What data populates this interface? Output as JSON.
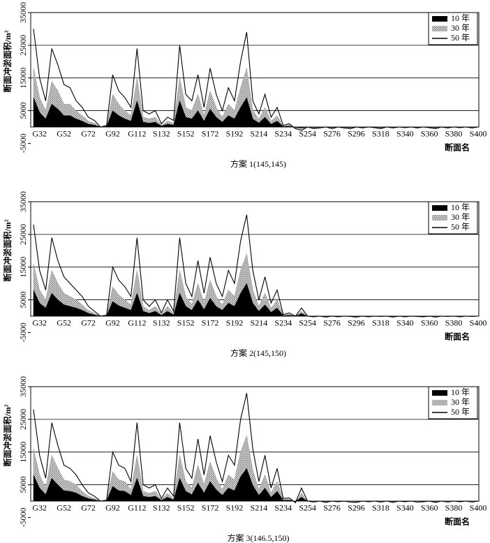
{
  "chart_data": [
    {
      "type": "line",
      "caption": "方案 1(145,145)",
      "xlabel": "断面名",
      "ylabel": "断面冲淤面积/m²",
      "legend": "upper right",
      "grid": true,
      "ylim": [
        -5000,
        35000
      ],
      "yticks": [
        -5000,
        5000,
        15000,
        25000,
        35000
      ],
      "categories": [
        null,
        "G32",
        null,
        null,
        null,
        "G52",
        null,
        null,
        null,
        "G72",
        null,
        null,
        null,
        "G92",
        null,
        null,
        null,
        "G112",
        null,
        null,
        null,
        "S132",
        null,
        null,
        null,
        "S152",
        null,
        null,
        null,
        "S172",
        null,
        null,
        null,
        "S192",
        null,
        null,
        null,
        "S214",
        null,
        null,
        null,
        "S234",
        null,
        null,
        null,
        "S254",
        null,
        null,
        null,
        "S276",
        null,
        null,
        null,
        "S296",
        null,
        null,
        null,
        "S318",
        null,
        null,
        null,
        "S340",
        null,
        null,
        null,
        "S360",
        null,
        null,
        null,
        "S380",
        null,
        null,
        null,
        "S400"
      ],
      "series": [
        {
          "name": "10 年",
          "kind": "area",
          "color": "#000000",
          "values": [
            9000,
            4500,
            2500,
            7000,
            5500,
            3500,
            3500,
            2500,
            1800,
            900,
            600,
            0,
            150,
            5000,
            3500,
            2500,
            1800,
            8000,
            1500,
            1200,
            1500,
            300,
            900,
            600,
            8000,
            3000,
            2500,
            5000,
            1800,
            5500,
            3000,
            1500,
            3500,
            2500,
            6000,
            9000,
            2500,
            1200,
            3000,
            900,
            1800,
            150,
            300,
            -150,
            -300,
            0,
            -150,
            -100,
            0,
            -150,
            0,
            -100,
            -150,
            0,
            -100,
            0,
            -50,
            -150,
            0,
            -100,
            0,
            -50,
            0,
            -100,
            0,
            -50,
            -150,
            0,
            -100,
            0,
            -50,
            0,
            -100,
            0
          ]
        },
        {
          "name": "30 年",
          "kind": "hatch",
          "color": "#888888",
          "values": [
            18000,
            9000,
            5000,
            14000,
            11000,
            7000,
            7000,
            5000,
            3500,
            1800,
            1200,
            0,
            300,
            10000,
            7000,
            5000,
            3500,
            15000,
            3000,
            2500,
            3000,
            600,
            1800,
            1200,
            15000,
            6000,
            5000,
            10000,
            3500,
            11000,
            6000,
            3000,
            7000,
            5000,
            12000,
            18000,
            5000,
            2500,
            6000,
            1800,
            3500,
            300,
            600,
            -300,
            -600,
            0,
            -300,
            -200,
            0,
            -300,
            0,
            -200,
            -300,
            0,
            -200,
            0,
            -100,
            -300,
            0,
            -200,
            0,
            -100,
            0,
            -200,
            0,
            -100,
            -300,
            0,
            -200,
            0,
            -100,
            0,
            -200,
            0
          ]
        },
        {
          "name": "50 年",
          "kind": "line",
          "color": "#000000",
          "values": [
            30000,
            15000,
            8000,
            24000,
            19000,
            13000,
            12000,
            8000,
            6000,
            3000,
            2000,
            0,
            500,
            16000,
            11000,
            9000,
            6000,
            24000,
            5000,
            4000,
            5000,
            1000,
            3000,
            2000,
            25000,
            10000,
            8000,
            16000,
            6000,
            18000,
            10000,
            5000,
            12000,
            8000,
            20000,
            29000,
            8000,
            4000,
            10000,
            3000,
            6000,
            500,
            1000,
            -500,
            -1000,
            0,
            -500,
            -300,
            0,
            -500,
            0,
            -300,
            -500,
            0,
            -300,
            0,
            -200,
            -500,
            0,
            -300,
            0,
            -200,
            0,
            -300,
            0,
            -200,
            -500,
            0,
            -300,
            0,
            -200,
            0,
            -300,
            0
          ]
        }
      ]
    },
    {
      "type": "line",
      "caption": "方案 2(145,150)",
      "xlabel": "断面名",
      "ylabel": "断面冲淤面积/m²",
      "legend": "upper right",
      "grid": true,
      "ylim": [
        -5000,
        35000
      ],
      "yticks": [
        -5000,
        5000,
        15000,
        25000,
        35000
      ],
      "categories": [
        null,
        "G32",
        null,
        null,
        null,
        "G52",
        null,
        null,
        null,
        "G72",
        null,
        null,
        null,
        "G92",
        null,
        null,
        null,
        "G112",
        null,
        null,
        null,
        "S132",
        null,
        null,
        null,
        "S152",
        null,
        null,
        null,
        "S172",
        null,
        null,
        null,
        "S192",
        null,
        null,
        null,
        "S214",
        null,
        null,
        null,
        "S234",
        null,
        null,
        null,
        "S254",
        null,
        null,
        null,
        "S276",
        null,
        null,
        null,
        "S296",
        null,
        null,
        null,
        "S318",
        null,
        null,
        null,
        "S340",
        null,
        null,
        null,
        "S360",
        null,
        null,
        null,
        "S380",
        null,
        null,
        null,
        "S400"
      ],
      "series": [
        {
          "name": "10 年",
          "kind": "area",
          "color": "#000000",
          "values": [
            8000,
            4000,
            2500,
            7000,
            5000,
            3500,
            3000,
            2500,
            1800,
            900,
            400,
            0,
            100,
            4500,
            3200,
            2500,
            1800,
            7000,
            1500,
            900,
            1500,
            300,
            1500,
            400,
            7000,
            3000,
            1800,
            5000,
            2000,
            5500,
            3000,
            1800,
            4000,
            3000,
            7000,
            10000,
            4000,
            1500,
            3500,
            1200,
            2500,
            150,
            300,
            0,
            800,
            0,
            -50,
            0,
            -100,
            0,
            -50,
            0,
            -50,
            -100,
            0,
            -50,
            0,
            -50,
            0,
            -100,
            0,
            -50,
            0,
            -50,
            -50,
            0,
            -100,
            0,
            -50,
            0,
            -50,
            0,
            -50,
            0
          ]
        },
        {
          "name": "30 年",
          "kind": "hatch",
          "color": "#888888",
          "values": [
            16000,
            8000,
            5000,
            14000,
            10000,
            7000,
            6000,
            5000,
            3500,
            1800,
            900,
            0,
            200,
            9000,
            6500,
            5000,
            3500,
            14000,
            3000,
            1800,
            3000,
            600,
            3000,
            900,
            14000,
            6000,
            3500,
            10000,
            4000,
            11000,
            6000,
            3500,
            8000,
            6000,
            14000,
            19000,
            8000,
            3000,
            7000,
            2400,
            5000,
            300,
            600,
            0,
            1500,
            0,
            -100,
            0,
            -200,
            0,
            -100,
            0,
            -100,
            -200,
            0,
            -100,
            0,
            -100,
            0,
            -200,
            0,
            -100,
            0,
            -100,
            -100,
            0,
            -200,
            0,
            -100,
            0,
            -100,
            0,
            -100,
            0
          ]
        },
        {
          "name": "50 年",
          "kind": "line",
          "color": "#000000",
          "values": [
            28000,
            14000,
            8000,
            24000,
            17000,
            12000,
            10000,
            8000,
            6000,
            3000,
            1500,
            0,
            300,
            15000,
            11000,
            9000,
            6000,
            24000,
            5000,
            3000,
            5000,
            1000,
            5000,
            1500,
            24000,
            10000,
            6000,
            17000,
            7000,
            18000,
            10000,
            6000,
            14000,
            10000,
            23000,
            31000,
            14000,
            5000,
            12000,
            4000,
            8000,
            500,
            1000,
            0,
            2500,
            0,
            -200,
            0,
            -300,
            0,
            -200,
            0,
            -100,
            -300,
            0,
            -200,
            0,
            -100,
            0,
            -300,
            0,
            -200,
            0,
            -100,
            -200,
            0,
            -300,
            0,
            -100,
            0,
            -200,
            0,
            -100,
            0
          ]
        }
      ]
    },
    {
      "type": "line",
      "caption": "方案 3(146.5,150)",
      "xlabel": "断面名",
      "ylabel": "断面冲淤面积/m²",
      "legend": "upper right",
      "grid": true,
      "ylim": [
        -5000,
        35000
      ],
      "yticks": [
        -5000,
        5000,
        15000,
        25000,
        35000
      ],
      "categories": [
        null,
        "G32",
        null,
        null,
        null,
        "G52",
        null,
        null,
        null,
        "G72",
        null,
        null,
        null,
        "G92",
        null,
        null,
        null,
        "G112",
        null,
        null,
        null,
        "S132",
        null,
        null,
        null,
        "S152",
        null,
        null,
        null,
        "S172",
        null,
        null,
        null,
        "S192",
        null,
        null,
        null,
        "S214",
        null,
        null,
        null,
        "S234",
        null,
        null,
        null,
        "S254",
        null,
        null,
        null,
        "S276",
        null,
        null,
        null,
        "S296",
        null,
        null,
        null,
        "S318",
        null,
        null,
        null,
        "S340",
        null,
        null,
        null,
        "S360",
        null,
        null,
        null,
        "S380",
        null,
        null,
        null,
        "S400"
      ],
      "series": [
        {
          "name": "10 年",
          "kind": "area",
          "color": "#000000",
          "values": [
            8000,
            4000,
            2000,
            7000,
            5000,
            3200,
            3000,
            2500,
            1500,
            800,
            400,
            0,
            100,
            4500,
            3200,
            3000,
            1800,
            7000,
            1500,
            1200,
            1500,
            250,
            1200,
            400,
            7000,
            3000,
            2000,
            5500,
            2500,
            6000,
            3500,
            1800,
            4000,
            3200,
            7500,
            10000,
            4800,
            1800,
            4000,
            1200,
            3000,
            250,
            300,
            -150,
            1200,
            0,
            -50,
            0,
            -100,
            0,
            -50,
            0,
            -50,
            -100,
            0,
            -50,
            0,
            -50,
            0,
            -100,
            0,
            -50,
            0,
            -50,
            -50,
            0,
            -100,
            0,
            -50,
            0,
            -50,
            0,
            -50,
            0
          ]
        },
        {
          "name": "30 年",
          "kind": "hatch",
          "color": "#888888",
          "values": [
            16000,
            8000,
            4000,
            14000,
            10000,
            6500,
            6000,
            5000,
            3000,
            1500,
            900,
            0,
            200,
            9000,
            6500,
            6000,
            3500,
            14000,
            3000,
            2400,
            3000,
            500,
            2400,
            900,
            14000,
            6000,
            4000,
            11000,
            5000,
            12000,
            7000,
            3500,
            8000,
            6500,
            15000,
            20000,
            9500,
            3500,
            8000,
            2400,
            6000,
            500,
            600,
            -300,
            2400,
            0,
            -100,
            0,
            -200,
            0,
            -100,
            0,
            -100,
            -200,
            0,
            -100,
            0,
            -100,
            0,
            -200,
            0,
            -100,
            0,
            -100,
            -100,
            0,
            -200,
            0,
            -100,
            0,
            -100,
            0,
            -100,
            0
          ]
        },
        {
          "name": "50 年",
          "kind": "line",
          "color": "#000000",
          "values": [
            28000,
            14000,
            7000,
            24000,
            17000,
            11000,
            10000,
            8000,
            5000,
            2500,
            1500,
            0,
            300,
            15000,
            11000,
            10000,
            6000,
            24000,
            5000,
            4000,
            5000,
            800,
            4000,
            1500,
            24000,
            10000,
            7000,
            19000,
            8000,
            20000,
            12000,
            6000,
            14000,
            11000,
            25000,
            33000,
            16000,
            6000,
            14000,
            4000,
            10000,
            800,
            1000,
            -500,
            4000,
            0,
            -300,
            0,
            -400,
            0,
            -200,
            0,
            -300,
            -400,
            0,
            -200,
            0,
            -300,
            0,
            -400,
            0,
            -200,
            0,
            -300,
            -200,
            0,
            -400,
            0,
            -300,
            0,
            -200,
            0,
            -300,
            0
          ]
        }
      ]
    }
  ]
}
